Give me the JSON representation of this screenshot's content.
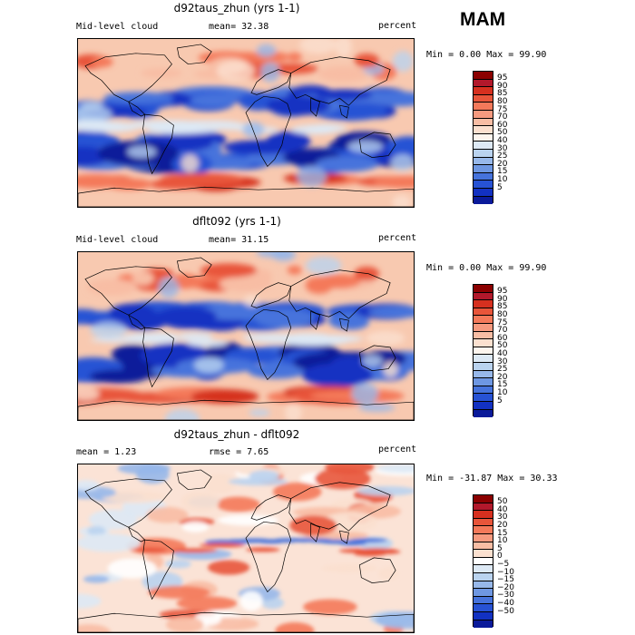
{
  "season": "MAM",
  "panels": [
    {
      "title": "d92taus_zhun (yrs 1-1)",
      "left_label": "Mid-level cloud",
      "mid_label": "mean=  32.38",
      "units": "percent",
      "minmax": "Min =    0.00 Max =  99.90",
      "colorbar": {
        "colors": [
          "#8b0000",
          "#b2182b",
          "#d6301f",
          "#e8553a",
          "#f4795a",
          "#f69a7f",
          "#f8bda4",
          "#fbe0cf",
          "#fdf5ee",
          "#dde9f5",
          "#bad3ef",
          "#97b8ea",
          "#6e97e2",
          "#4673dc",
          "#2752d4",
          "#1231c2",
          "#0a1a9a"
        ],
        "labels": [
          "95",
          "90",
          "85",
          "80",
          "75",
          "70",
          "60",
          "50",
          "40",
          "30",
          "25",
          "20",
          "15",
          "10",
          "5"
        ]
      }
    },
    {
      "title": "dflt092 (yrs 1-1)",
      "left_label": "Mid-level cloud",
      "mid_label": "mean=  31.15",
      "units": "percent",
      "minmax": "Min =    0.00 Max =  99.90",
      "colorbar": {
        "colors": [
          "#8b0000",
          "#b2182b",
          "#d6301f",
          "#e8553a",
          "#f4795a",
          "#f69a7f",
          "#f8bda4",
          "#fbe0cf",
          "#fdf5ee",
          "#dde9f5",
          "#bad3ef",
          "#97b8ea",
          "#6e97e2",
          "#4673dc",
          "#2752d4",
          "#1231c2",
          "#0a1a9a"
        ],
        "labels": [
          "95",
          "90",
          "85",
          "80",
          "75",
          "70",
          "60",
          "50",
          "40",
          "30",
          "25",
          "20",
          "15",
          "10",
          "5"
        ]
      }
    },
    {
      "title": "d92taus_zhun - dflt092",
      "left_label": "mean =    1.23",
      "mid_label": "rmse =    7.65",
      "units": "percent",
      "minmax": "Min = -31.87 Max =  30.33",
      "colorbar": {
        "colors": [
          "#8b0000",
          "#b2182b",
          "#d6301f",
          "#e8553a",
          "#f4795a",
          "#f69a7f",
          "#f8bda4",
          "#fbe0cf",
          "#ffffff",
          "#dde9f5",
          "#bad3ef",
          "#97b8ea",
          "#6e97e2",
          "#4673dc",
          "#2752d4",
          "#1231c2",
          "#0a1a9a"
        ],
        "labels": [
          "50",
          "40",
          "30",
          "20",
          "15",
          "10",
          "5",
          "0",
          "−5",
          "−10",
          "−15",
          "−20",
          "−30",
          "−40",
          "−50"
        ]
      }
    }
  ]
}
